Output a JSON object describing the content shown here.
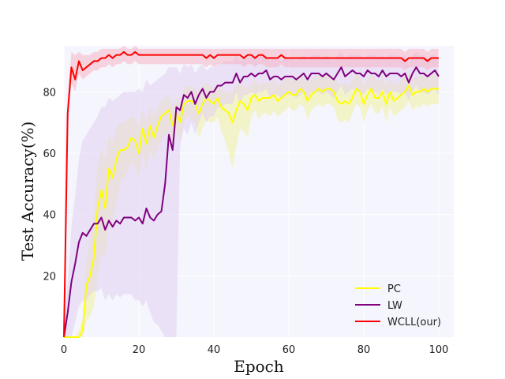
{
  "chart_data": {
    "type": "line",
    "xlabel": "Epoch",
    "ylabel": "Test Accuracy(%)",
    "xlim": [
      0,
      104
    ],
    "ylim": [
      0,
      95
    ],
    "xticks": [
      0,
      20,
      40,
      60,
      80,
      100
    ],
    "yticks": [
      20,
      40,
      60,
      80
    ],
    "grid": true,
    "legend_position": "lower-right",
    "background_color": "#f5f5fd",
    "x": [
      0,
      1,
      2,
      3,
      4,
      5,
      6,
      7,
      8,
      9,
      10,
      11,
      12,
      13,
      14,
      15,
      16,
      17,
      18,
      19,
      20,
      21,
      22,
      23,
      24,
      25,
      26,
      27,
      28,
      29,
      30,
      31,
      32,
      33,
      34,
      35,
      36,
      37,
      38,
      39,
      40,
      41,
      42,
      43,
      44,
      45,
      46,
      47,
      48,
      49,
      50,
      51,
      52,
      53,
      54,
      55,
      56,
      57,
      58,
      59,
      60,
      61,
      62,
      63,
      64,
      65,
      66,
      67,
      68,
      69,
      70,
      71,
      72,
      73,
      74,
      75,
      76,
      77,
      78,
      79,
      80,
      81,
      82,
      83,
      84,
      85,
      86,
      87,
      88,
      89,
      90,
      91,
      92,
      93,
      94,
      95,
      96,
      97,
      98,
      99,
      100
    ],
    "series": [
      {
        "name": "PC",
        "color": "#ffff00",
        "band_color": "#f0f0a0",
        "values": [
          0,
          0,
          0,
          0,
          0,
          2,
          17,
          20,
          26,
          42,
          48,
          42,
          55,
          52,
          58,
          61,
          61,
          62,
          65,
          64,
          60,
          68,
          63,
          69,
          65,
          69,
          72,
          73,
          74,
          69,
          73,
          70,
          76,
          77,
          77,
          76,
          73,
          76,
          78,
          77,
          76,
          78,
          75,
          74,
          73,
          70,
          74,
          77,
          76,
          74,
          78,
          79,
          77,
          78,
          78,
          78,
          79,
          77,
          78,
          79,
          80,
          79,
          79,
          81,
          80,
          77,
          79,
          80,
          81,
          80,
          81,
          81,
          80,
          77,
          76,
          77,
          76,
          78,
          81,
          80,
          76,
          79,
          81,
          78,
          78,
          80,
          76,
          80,
          77,
          78,
          79,
          80,
          82,
          79,
          80,
          80,
          81,
          80,
          81,
          81,
          81
        ],
        "lower": [
          0,
          0,
          0,
          0,
          0,
          0,
          5,
          7,
          10,
          20,
          28,
          26,
          36,
          38,
          44,
          50,
          52,
          54,
          57,
          56,
          52,
          60,
          55,
          61,
          58,
          62,
          64,
          66,
          67,
          63,
          67,
          64,
          70,
          72,
          71,
          70,
          65,
          68,
          71,
          70,
          70,
          72,
          67,
          64,
          60,
          55,
          62,
          68,
          67,
          65,
          72,
          74,
          71,
          73,
          73,
          72,
          74,
          72,
          73,
          74,
          75,
          74,
          74,
          76,
          75,
          71,
          74,
          75,
          76,
          75,
          76,
          76,
          75,
          71,
          70,
          71,
          70,
          73,
          76,
          75,
          70,
          74,
          76,
          73,
          73,
          75,
          70,
          75,
          72,
          73,
          74,
          75,
          77,
          74,
          75,
          75,
          76,
          75,
          76,
          76,
          76
        ],
        "upper": [
          0,
          0,
          0,
          0,
          2,
          6,
          25,
          32,
          40,
          55,
          62,
          58,
          66,
          64,
          68,
          70,
          70,
          71,
          72,
          71,
          69,
          74,
          70,
          75,
          72,
          75,
          77,
          78,
          79,
          75,
          78,
          76,
          81,
          82,
          82,
          81,
          80,
          82,
          83,
          82,
          81,
          83,
          81,
          80,
          80,
          80,
          82,
          83,
          82,
          81,
          83,
          84,
          82,
          83,
          83,
          83,
          84,
          82,
          83,
          84,
          85,
          84,
          84,
          86,
          85,
          83,
          84,
          85,
          86,
          85,
          86,
          86,
          85,
          83,
          82,
          83,
          82,
          84,
          86,
          85,
          82,
          84,
          86,
          84,
          83,
          85,
          82,
          85,
          82,
          83,
          84,
          85,
          87,
          84,
          85,
          85,
          86,
          85,
          86,
          86,
          86
        ]
      },
      {
        "name": "LW",
        "color": "#800080",
        "band_color": "#e0cff0",
        "values": [
          0,
          8,
          18,
          24,
          31,
          34,
          33,
          35,
          37,
          37,
          39,
          35,
          38,
          36,
          38,
          37,
          39,
          39,
          39,
          38,
          39,
          37,
          42,
          39,
          38,
          40,
          41,
          50,
          66,
          61,
          75,
          74,
          79,
          78,
          80,
          76,
          79,
          81,
          78,
          80,
          80,
          82,
          82,
          83,
          83,
          83,
          86,
          83,
          85,
          85,
          86,
          85,
          86,
          86,
          87,
          84,
          85,
          85,
          84,
          85,
          85,
          85,
          84,
          85,
          86,
          84,
          86,
          86,
          86,
          85,
          86,
          85,
          84,
          86,
          88,
          85,
          86,
          87,
          86,
          86,
          85,
          87,
          86,
          86,
          85,
          87,
          85,
          86,
          86,
          86,
          85,
          86,
          83,
          86,
          88,
          86,
          86,
          85,
          86,
          87,
          85
        ],
        "lower": [
          0,
          0,
          0,
          5,
          10,
          12,
          12,
          14,
          15,
          15,
          16,
          12,
          14,
          12,
          14,
          13,
          14,
          14,
          14,
          12,
          12,
          10,
          12,
          8,
          5,
          4,
          2,
          0,
          0,
          0,
          0,
          62,
          68,
          66,
          70,
          66,
          70,
          73,
          70,
          72,
          72,
          75,
          75,
          76,
          76,
          76,
          80,
          76,
          79,
          79,
          80,
          79,
          80,
          80,
          81,
          78,
          79,
          79,
          78,
          79,
          79,
          79,
          78,
          79,
          80,
          78,
          80,
          80,
          80,
          79,
          80,
          79,
          78,
          80,
          82,
          79,
          80,
          81,
          80,
          80,
          79,
          81,
          80,
          80,
          79,
          81,
          79,
          80,
          80,
          80,
          79,
          80,
          77,
          80,
          82,
          80,
          80,
          79,
          80,
          81,
          79
        ],
        "upper": [
          0,
          18,
          36,
          46,
          58,
          64,
          66,
          68,
          70,
          72,
          75,
          75,
          78,
          77,
          78,
          79,
          80,
          80,
          80,
          80,
          81,
          80,
          84,
          82,
          83,
          84,
          85,
          86,
          88,
          88,
          88,
          86,
          89,
          88,
          89,
          86,
          88,
          89,
          87,
          88,
          88,
          89,
          89,
          90,
          90,
          90,
          92,
          90,
          91,
          91,
          92,
          91,
          92,
          92,
          92,
          90,
          91,
          91,
          90,
          91,
          91,
          91,
          90,
          91,
          92,
          90,
          92,
          92,
          92,
          91,
          92,
          91,
          90,
          92,
          93,
          91,
          92,
          92,
          92,
          92,
          91,
          92,
          92,
          92,
          91,
          92,
          91,
          92,
          92,
          92,
          91,
          92,
          89,
          92,
          93,
          92,
          92,
          91,
          92,
          92,
          91
        ]
      },
      {
        "name": "WCLL(our)",
        "color": "#ff0000",
        "band_color": "#f5b5c5",
        "values": [
          0,
          73,
          88,
          84,
          90,
          87,
          88,
          89,
          90,
          90,
          91,
          91,
          92,
          91,
          92,
          92,
          93,
          92,
          92,
          93,
          92,
          92,
          92,
          92,
          92,
          92,
          92,
          92,
          92,
          92,
          92,
          92,
          92,
          92,
          92,
          92,
          92,
          92,
          91,
          92,
          91,
          92,
          92,
          92,
          92,
          92,
          92,
          92,
          91,
          92,
          92,
          91,
          92,
          92,
          91,
          91,
          91,
          91,
          92,
          91,
          91,
          91,
          91,
          91,
          91,
          91,
          91,
          91,
          91,
          91,
          91,
          91,
          91,
          91,
          91,
          91,
          91,
          91,
          91,
          91,
          91,
          91,
          91,
          91,
          91,
          91,
          91,
          91,
          91,
          91,
          91,
          90,
          91,
          91,
          91,
          91,
          91,
          90,
          91,
          91,
          91
        ],
        "lower": [
          0,
          68,
          83,
          80,
          86,
          84,
          85,
          86,
          87,
          87,
          88,
          88,
          89,
          88,
          89,
          89,
          90,
          89,
          89,
          90,
          89,
          89,
          89,
          89,
          89,
          89,
          89,
          89,
          89,
          89,
          89,
          89,
          89,
          89,
          89,
          89,
          89,
          89,
          88,
          89,
          88,
          89,
          89,
          89,
          89,
          89,
          89,
          89,
          88,
          89,
          89,
          88,
          89,
          89,
          88,
          88,
          88,
          88,
          89,
          88,
          88,
          88,
          88,
          88,
          88,
          88,
          88,
          88,
          88,
          88,
          88,
          88,
          88,
          88,
          88,
          88,
          88,
          88,
          88,
          88,
          88,
          88,
          88,
          88,
          88,
          88,
          88,
          88,
          88,
          88,
          88,
          87,
          88,
          88,
          88,
          88,
          88,
          87,
          88,
          88,
          88
        ],
        "upper": [
          0,
          78,
          93,
          92,
          93,
          92,
          92,
          92,
          93,
          93,
          94,
          94,
          94,
          94,
          94,
          94,
          95,
          94,
          94,
          95,
          94,
          94,
          94,
          94,
          94,
          94,
          94,
          94,
          94,
          94,
          94,
          94,
          94,
          94,
          94,
          94,
          94,
          94,
          94,
          94,
          94,
          94,
          94,
          94,
          94,
          94,
          94,
          94,
          94,
          94,
          94,
          94,
          94,
          94,
          94,
          94,
          94,
          94,
          94,
          94,
          94,
          94,
          94,
          94,
          94,
          94,
          94,
          94,
          94,
          94,
          94,
          94,
          94,
          94,
          94,
          94,
          94,
          94,
          94,
          94,
          94,
          94,
          94,
          94,
          94,
          94,
          94,
          94,
          94,
          94,
          94,
          93,
          94,
          94,
          94,
          94,
          94,
          93,
          94,
          94,
          94
        ]
      }
    ]
  }
}
